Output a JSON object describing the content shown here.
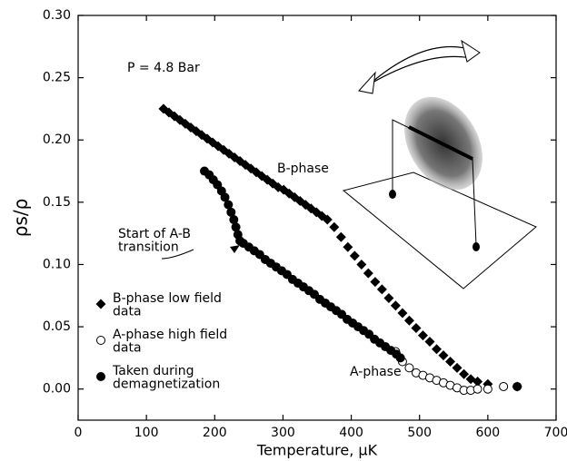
{
  "chart_data": {
    "type": "scatter",
    "xlabel": "Temperature, µK",
    "ylabel": "ρs/ρ",
    "xlim": [
      0,
      700
    ],
    "ylim": [
      -0.025,
      0.3
    ],
    "xticks": [
      0,
      100,
      200,
      300,
      400,
      500,
      600,
      700
    ],
    "yticks": [
      {
        "value": 0,
        "label": "0.00"
      },
      {
        "value": 0.05,
        "label": "0.05"
      },
      {
        "value": 0.1,
        "label": "0.10"
      },
      {
        "value": 0.15,
        "label": "0.15"
      },
      {
        "value": 0.2,
        "label": "0.20"
      },
      {
        "value": 0.25,
        "label": "0.25"
      },
      {
        "value": 0.3,
        "label": "0.30"
      }
    ],
    "annotations": [
      "P = 4.8 Bar",
      "B-phase",
      "A-phase",
      "Start of A-B\ntransition"
    ],
    "series": [
      {
        "name": "B-phase low field\ndata",
        "marker": "diamond",
        "color": "#000000",
        "x": [
          125,
          133,
          141,
          149,
          157,
          165,
          173,
          181,
          189,
          197,
          205,
          213,
          221,
          229,
          237,
          245,
          253,
          261,
          269,
          277,
          285,
          293,
          301,
          309,
          317,
          325,
          333,
          341,
          349,
          357,
          365,
          375,
          385,
          395,
          405,
          415,
          425,
          435,
          445,
          455,
          465,
          475,
          485,
          495,
          505,
          515,
          525,
          535,
          545,
          555,
          565,
          575,
          585,
          600,
          643
        ],
        "values": [
          0.225,
          0.222,
          0.219,
          0.216,
          0.213,
          0.21,
          0.207,
          0.204,
          0.201,
          0.198,
          0.195,
          0.192,
          0.189,
          0.186,
          0.183,
          0.18,
          0.177,
          0.174,
          0.171,
          0.168,
          0.165,
          0.162,
          0.16,
          0.157,
          0.154,
          0.151,
          0.148,
          0.145,
          0.142,
          0.139,
          0.136,
          0.13,
          0.122,
          0.114,
          0.107,
          0.1,
          0.093,
          0.086,
          0.08,
          0.073,
          0.067,
          0.061,
          0.055,
          0.049,
          0.043,
          0.038,
          0.032,
          0.027,
          0.022,
          0.017,
          0.012,
          0.008,
          0.006,
          0.004,
          0.002
        ]
      },
      {
        "name": "A-phase high field\ndata",
        "marker": "circle-open",
        "color": "#000000",
        "x": [
          465,
          475,
          485,
          495,
          505,
          515,
          525,
          535,
          545,
          555,
          565,
          575,
          585,
          600,
          623
        ],
        "values": [
          0.03,
          0.022,
          0.017,
          0.013,
          0.011,
          0.009,
          0.007,
          0.005,
          0.003,
          0.001,
          -0.001,
          -0.001,
          0.0,
          0.0,
          0.002
        ]
      },
      {
        "name": "Taken during\ndemagnetization",
        "marker": "circle",
        "color": "#000000",
        "x": [
          185,
          192,
          198,
          204,
          210,
          215,
          220,
          224,
          228,
          231,
          234,
          237,
          242,
          250,
          258,
          266,
          274,
          282,
          290,
          298,
          306,
          314,
          322,
          330,
          338,
          346,
          354,
          362,
          370,
          378,
          386,
          394,
          402,
          410,
          418,
          426,
          434,
          442,
          450,
          458,
          466,
          472,
          643
        ],
        "values": [
          0.175,
          0.172,
          0.168,
          0.164,
          0.159,
          0.154,
          0.148,
          0.142,
          0.136,
          0.13,
          0.124,
          0.119,
          0.117,
          0.114,
          0.111,
          0.108,
          0.104,
          0.101,
          0.098,
          0.095,
          0.092,
          0.088,
          0.085,
          0.082,
          0.079,
          0.076,
          0.072,
          0.069,
          0.066,
          0.063,
          0.06,
          0.056,
          0.053,
          0.05,
          0.047,
          0.044,
          0.04,
          0.037,
          0.034,
          0.031,
          0.028,
          0.025,
          0.002
        ]
      }
    ]
  }
}
